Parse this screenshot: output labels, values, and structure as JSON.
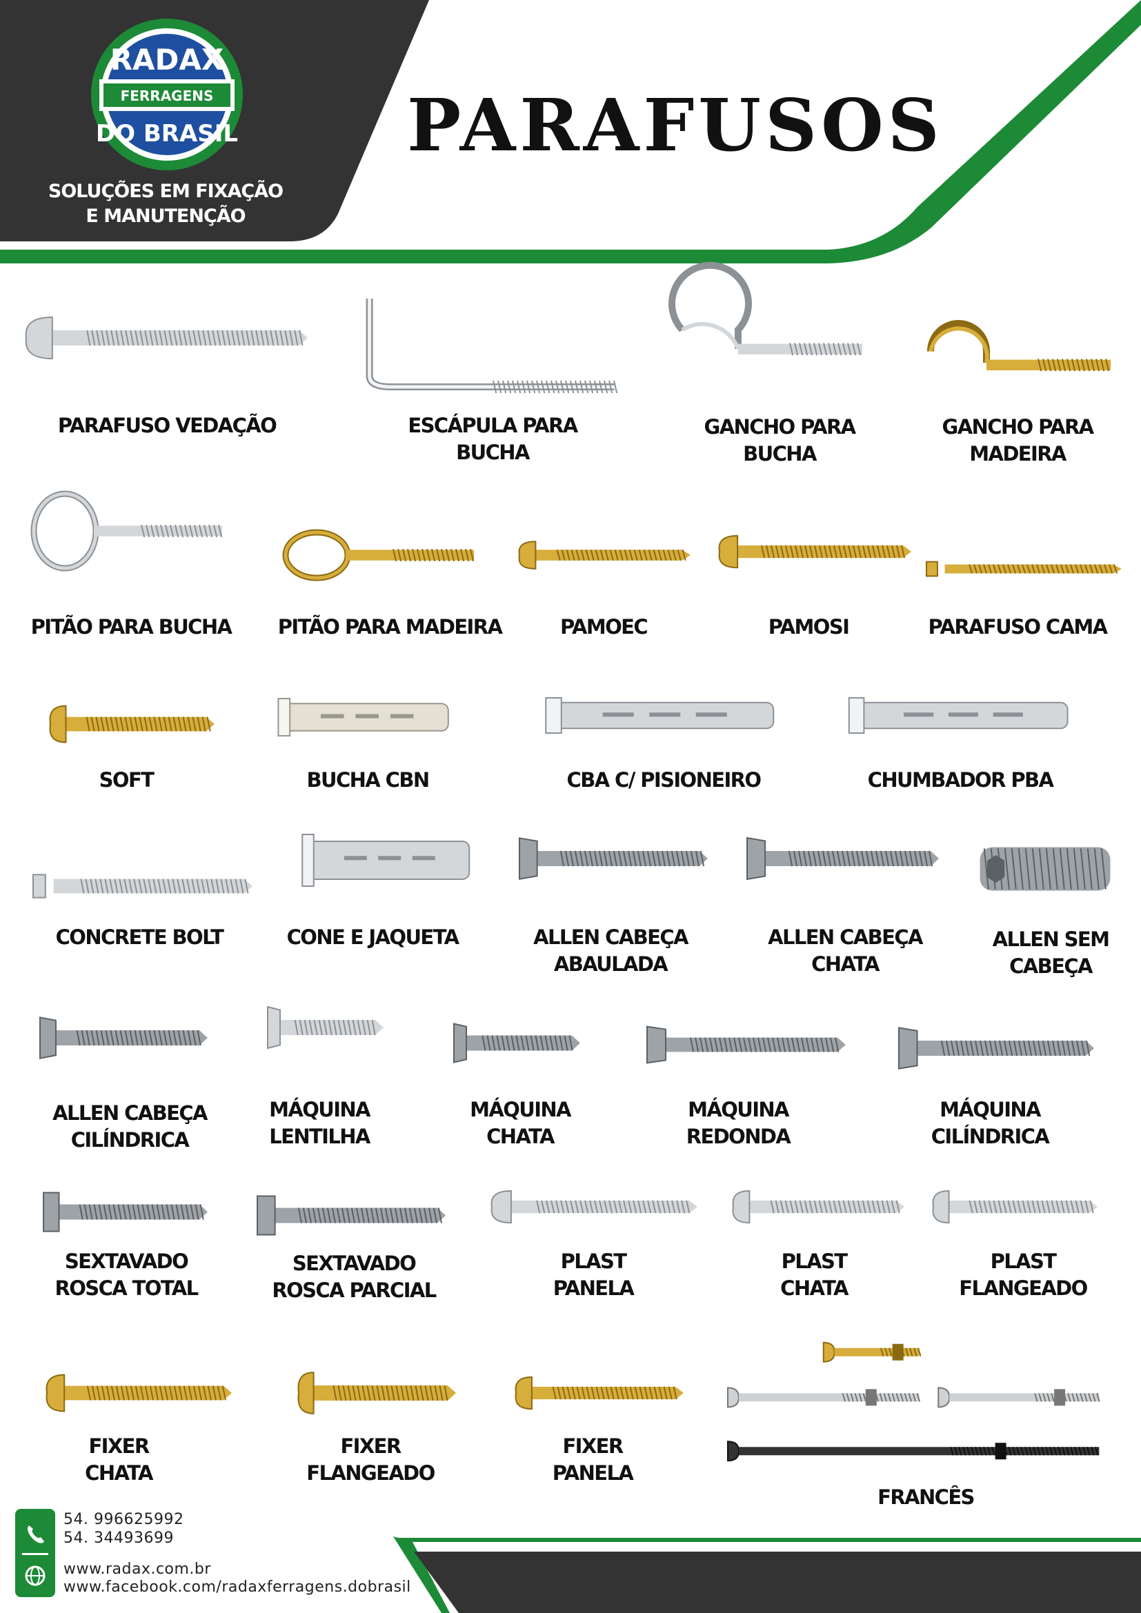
{
  "brand": {
    "logo_text_top": "RADAX",
    "logo_text_middle": "FERRAGENS",
    "logo_text_bottom": "DO BRASIL",
    "tagline_line1": "SOLUÇÕES EM FIXAÇÃO",
    "tagline_line2": "E MANUTENÇÃO"
  },
  "page_title": "PARAFUSOS",
  "colors": {
    "brand_green": "#1c8a36",
    "dark_gray": "#333333",
    "logo_blue": "#1e4fa0"
  },
  "products": [
    {
      "id": "vedacao",
      "lines": [
        "PARAFUSO VEDAÇÃO"
      ],
      "finish": "zinc",
      "icon": "screw-icon"
    },
    {
      "id": "escapula",
      "lines": [
        "ESCÁPULA PARA",
        "BUCHA"
      ],
      "finish": "zinc",
      "icon": "l-hook-icon"
    },
    {
      "id": "gancho-bucha",
      "lines": [
        "GANCHO PARA",
        "BUCHA"
      ],
      "finish": "zinc",
      "icon": "hook-icon"
    },
    {
      "id": "gancho-madeira",
      "lines": [
        "GANCHO PARA",
        "MADEIRA"
      ],
      "finish": "brass",
      "icon": "hook-icon"
    },
    {
      "id": "pitao-bucha",
      "lines": [
        "PITÃO PARA BUCHA"
      ],
      "finish": "zinc",
      "icon": "eye-bolt-icon"
    },
    {
      "id": "pitao-madeira",
      "lines": [
        "PITÃO PARA MADEIRA"
      ],
      "finish": "brass",
      "icon": "eye-bolt-icon"
    },
    {
      "id": "pamoec",
      "lines": [
        "PAMOEC"
      ],
      "finish": "brass",
      "icon": "screw-icon"
    },
    {
      "id": "pamosi",
      "lines": [
        "PAMOSI"
      ],
      "finish": "brass",
      "icon": "screw-icon"
    },
    {
      "id": "cama",
      "lines": [
        "PARAFUSO CAMA"
      ],
      "finish": "brass",
      "icon": "bolt-icon"
    },
    {
      "id": "soft",
      "lines": [
        "SOFT"
      ],
      "finish": "brass",
      "icon": "screw-icon"
    },
    {
      "id": "bucha-cbn",
      "lines": [
        "BUCHA  CBN"
      ],
      "finish": "nylon",
      "icon": "anchor-icon"
    },
    {
      "id": "cba",
      "lines": [
        "CBA C/ PISIONEIRO"
      ],
      "finish": "zinc",
      "icon": "anchor-icon"
    },
    {
      "id": "pba",
      "lines": [
        "CHUMBADOR PBA"
      ],
      "finish": "zinc",
      "icon": "anchor-icon"
    },
    {
      "id": "concrete",
      "lines": [
        "CONCRETE BOLT"
      ],
      "finish": "zinc",
      "icon": "bolt-icon"
    },
    {
      "id": "cone",
      "lines": [
        "CONE E JAQUETA"
      ],
      "finish": "zinc",
      "icon": "anchor-icon"
    },
    {
      "id": "allen-abaulada",
      "lines": [
        "ALLEN CABEÇA",
        "ABAULADA"
      ],
      "finish": "steel",
      "icon": "hex-socket-screw-icon"
    },
    {
      "id": "allen-chata",
      "lines": [
        "ALLEN CABEÇA",
        "CHATA"
      ],
      "finish": "steel",
      "icon": "hex-socket-screw-icon"
    },
    {
      "id": "allen-sem",
      "lines": [
        "ALLEN SEM",
        "CABEÇA"
      ],
      "finish": "steel",
      "icon": "set-screw-icon"
    },
    {
      "id": "allen-cil",
      "lines": [
        "ALLEN CABEÇA",
        "CILÍNDRICA"
      ],
      "finish": "steel",
      "icon": "hex-socket-screw-icon"
    },
    {
      "id": "maq-lentilha",
      "lines": [
        "MÁQUINA",
        "LENTILHA"
      ],
      "finish": "zinc",
      "icon": "machine-screw-icon"
    },
    {
      "id": "maq-chata",
      "lines": [
        "MÁQUINA",
        "CHATA"
      ],
      "finish": "steel",
      "icon": "machine-screw-icon"
    },
    {
      "id": "maq-redonda",
      "lines": [
        "MÁQUINA",
        "REDONDA"
      ],
      "finish": "steel",
      "icon": "machine-screw-icon"
    },
    {
      "id": "maq-cil",
      "lines": [
        "MÁQUINA",
        "CILÍNDRICA"
      ],
      "finish": "steel",
      "icon": "machine-screw-icon"
    },
    {
      "id": "sext-total",
      "lines": [
        "SEXTAVADO",
        "ROSCA TOTAL"
      ],
      "finish": "steel",
      "icon": "hex-bolt-icon"
    },
    {
      "id": "sext-parcial",
      "lines": [
        "SEXTAVADO",
        "ROSCA PARCIAL"
      ],
      "finish": "steel",
      "icon": "hex-bolt-icon"
    },
    {
      "id": "plast-panela",
      "lines": [
        "PLAST",
        "PANELA"
      ],
      "finish": "zinc",
      "icon": "screw-icon"
    },
    {
      "id": "plast-chata",
      "lines": [
        "PLAST",
        "CHATA"
      ],
      "finish": "zinc",
      "icon": "screw-icon"
    },
    {
      "id": "plast-flangeado",
      "lines": [
        "PLAST",
        "FLANGEADO"
      ],
      "finish": "zinc",
      "icon": "screw-icon"
    },
    {
      "id": "fixer-chata",
      "lines": [
        "FIXER",
        "CHATA"
      ],
      "finish": "brass",
      "icon": "screw-icon"
    },
    {
      "id": "fixer-flangeado",
      "lines": [
        "FIXER",
        "FLANGEADO"
      ],
      "finish": "brass",
      "icon": "screw-icon"
    },
    {
      "id": "fixer-panela",
      "lines": [
        "FIXER",
        "PANELA"
      ],
      "finish": "brass",
      "icon": "screw-icon"
    },
    {
      "id": "frances",
      "lines": [
        "FRANCÊS"
      ],
      "finish": "mixed",
      "icon": "carriage-bolt-icon"
    }
  ],
  "contact": {
    "phone1": "54. 996625992",
    "phone2": "54. 34493699",
    "website": "www.radax.com.br",
    "facebook": "www.facebook.com/radaxferragens.dobrasil"
  }
}
